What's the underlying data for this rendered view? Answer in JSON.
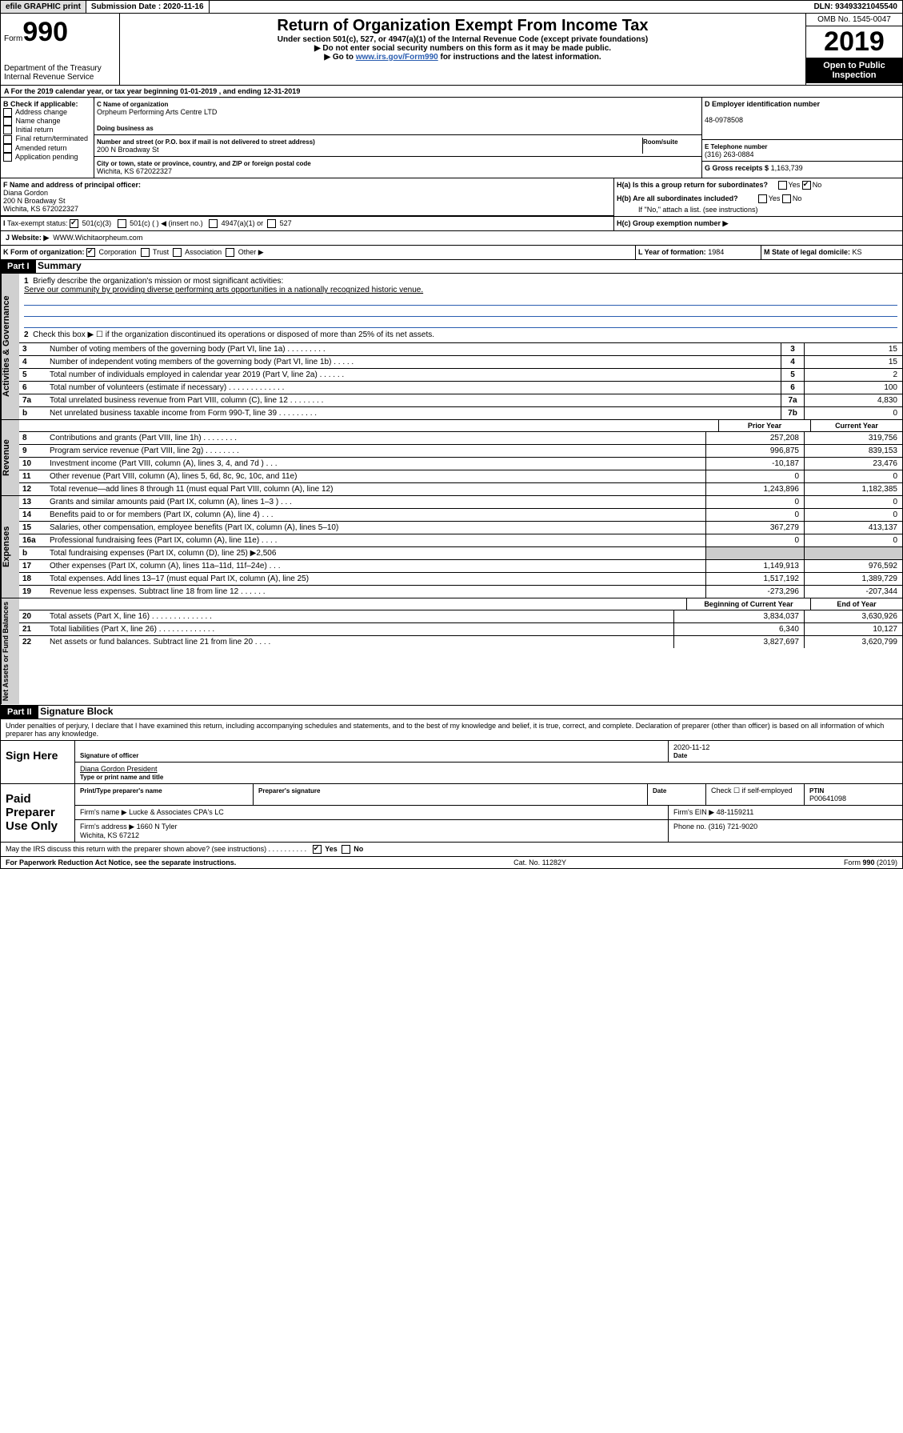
{
  "top": {
    "efile": "efile GRAPHIC print",
    "submission_label": "Submission Date :",
    "submission_date": "2020-11-16",
    "dln_label": "DLN:",
    "dln": "93493321045540"
  },
  "header": {
    "form_word": "Form",
    "form_no": "990",
    "dept": "Department of the Treasury\nInternal Revenue Service",
    "title": "Return of Organization Exempt From Income Tax",
    "subtitle": "Under section 501(c), 527, or 4947(a)(1) of the Internal Revenue Code (except private foundations)",
    "note1": "▶ Do not enter social security numbers on this form as it may be made public.",
    "note2_pre": "▶ Go to ",
    "note2_link": "www.irs.gov/Form990",
    "note2_post": " for instructions and the latest information.",
    "omb": "OMB No. 1545-0047",
    "year": "2019",
    "open": "Open to Public Inspection"
  },
  "section_a": "A  For the 2019 calendar year, or tax year beginning 01-01-2019    , and ending 12-31-2019",
  "box_b": {
    "label": "B Check if applicable:",
    "items": [
      "Address change",
      "Name change",
      "Initial return",
      "Final return/terminated",
      "Amended return",
      "Application pending"
    ]
  },
  "box_c": {
    "name_label": "C Name of organization",
    "name": "Orpheum Performing Arts Centre LTD",
    "dba_label": "Doing business as",
    "addr_label": "Number and street (or P.O. box if mail is not delivered to street address)",
    "room_label": "Room/suite",
    "addr": "200 N Broadway St",
    "city_label": "City or town, state or province, country, and ZIP or foreign postal code",
    "city": "Wichita, KS  672022327"
  },
  "box_d": {
    "label": "D Employer identification number",
    "val": "48-0978508"
  },
  "box_e": {
    "label": "E Telephone number",
    "val": "(316) 263-0884"
  },
  "box_g": {
    "label": "G Gross receipts $",
    "val": "1,163,739"
  },
  "box_f": {
    "label": "F  Name and address of principal officer:",
    "name": "Diana Gordon",
    "addr": "200 N Broadway St\nWichita, KS  672022327"
  },
  "box_h": {
    "a": "H(a)  Is this a group return for subordinates?",
    "b": "H(b)  Are all subordinates included?",
    "note": "If \"No,\" attach a list. (see instructions)",
    "c": "H(c)  Group exemption number ▶",
    "yes": "Yes",
    "no": "No"
  },
  "box_i": {
    "label": "Tax-exempt status:",
    "o1": "501(c)(3)",
    "o2": "501(c) (   ) ◀ (insert no.)",
    "o3": "4947(a)(1) or",
    "o4": "527"
  },
  "box_j": {
    "label": "J   Website: ▶",
    "val": "WWW.Wichitaorpheum.com"
  },
  "box_k": {
    "label": "K Form of organization:",
    "o1": "Corporation",
    "o2": "Trust",
    "o3": "Association",
    "o4": "Other ▶"
  },
  "box_l": {
    "label": "L Year of formation:",
    "val": "1984"
  },
  "box_m": {
    "label": "M State of legal domicile:",
    "val": "KS"
  },
  "part1": {
    "label": "Part I",
    "title": "Summary"
  },
  "summary": {
    "l1_label": "Briefly describe the organization's mission or most significant activities:",
    "l1": "Serve our community by providing diverse performing arts opportunities in a nationally recognized historic venue.",
    "l2": "Check this box ▶ ☐  if the organization discontinued its operations or disposed of more than 25% of its net assets.",
    "l3": "Number of voting members of the governing body (Part VI, line 1a)  .   .   .   .   .   .   .   .   .",
    "l3n": "3",
    "l3v": "15",
    "l4": "Number of independent voting members of the governing body (Part VI, line 1b)   .   .   .   .   .",
    "l4n": "4",
    "l4v": "15",
    "l5": "Total number of individuals employed in calendar year 2019 (Part V, line 2a)  .   .   .   .   .   .",
    "l5n": "5",
    "l5v": "2",
    "l6": "Total number of volunteers (estimate if necessary)   .   .   .   .   .   .   .   .   .   .   .   .   .",
    "l6n": "6",
    "l6v": "100",
    "l7a": "Total unrelated business revenue from Part VIII, column (C), line 12   .   .   .   .   .   .   .   .",
    "l7an": "7a",
    "l7av": "4,830",
    "l7b": "Net unrelated business taxable income from Form 990-T, line 39   .   .   .   .   .   .   .   .   .",
    "l7bn": "7b",
    "l7bv": "0"
  },
  "rev_head": {
    "prior": "Prior Year",
    "curr": "Current Year"
  },
  "revenue": [
    {
      "n": "8",
      "t": "Contributions and grants (Part VIII, line 1h)   .   .   .   .   .   .   .   .",
      "p": "257,208",
      "c": "319,756"
    },
    {
      "n": "9",
      "t": "Program service revenue (Part VIII, line 2g)   .   .   .   .   .   .   .   .",
      "p": "996,875",
      "c": "839,153"
    },
    {
      "n": "10",
      "t": "Investment income (Part VIII, column (A), lines 3, 4, and 7d )   .   .   .",
      "p": "-10,187",
      "c": "23,476"
    },
    {
      "n": "11",
      "t": "Other revenue (Part VIII, column (A), lines 5, 6d, 8c, 9c, 10c, and 11e)",
      "p": "0",
      "c": "0"
    },
    {
      "n": "12",
      "t": "Total revenue—add lines 8 through 11 (must equal Part VIII, column (A), line 12)",
      "p": "1,243,896",
      "c": "1,182,385"
    }
  ],
  "expenses": [
    {
      "n": "13",
      "t": "Grants and similar amounts paid (Part IX, column (A), lines 1–3 )   .   .   .",
      "p": "0",
      "c": "0"
    },
    {
      "n": "14",
      "t": "Benefits paid to or for members (Part IX, column (A), line 4)   .   .   .",
      "p": "0",
      "c": "0"
    },
    {
      "n": "15",
      "t": "Salaries, other compensation, employee benefits (Part IX, column (A), lines 5–10)",
      "p": "367,279",
      "c": "413,137"
    },
    {
      "n": "16a",
      "t": "Professional fundraising fees (Part IX, column (A), line 11e)   .   .   .   .",
      "p": "0",
      "c": "0"
    },
    {
      "n": "b",
      "t": "Total fundraising expenses (Part IX, column (D), line 25) ▶2,506",
      "p": "",
      "c": ""
    },
    {
      "n": "17",
      "t": "Other expenses (Part IX, column (A), lines 11a–11d, 11f–24e)   .   .   .",
      "p": "1,149,913",
      "c": "976,592"
    },
    {
      "n": "18",
      "t": "Total expenses. Add lines 13–17 (must equal Part IX, column (A), line 25)",
      "p": "1,517,192",
      "c": "1,389,729"
    },
    {
      "n": "19",
      "t": "Revenue less expenses. Subtract line 18 from line 12   .   .   .   .   .   .",
      "p": "-273,296",
      "c": "-207,344"
    }
  ],
  "net_head": {
    "prior": "Beginning of Current Year",
    "curr": "End of Year"
  },
  "netassets": [
    {
      "n": "20",
      "t": "Total assets (Part X, line 16)   .   .   .   .   .   .   .   .   .   .   .   .   .   .",
      "p": "3,834,037",
      "c": "3,630,926"
    },
    {
      "n": "21",
      "t": "Total liabilities (Part X, line 26)   .   .   .   .   .   .   .   .   .   .   .   .   .",
      "p": "6,340",
      "c": "10,127"
    },
    {
      "n": "22",
      "t": "Net assets or fund balances. Subtract line 21 from line 20   .   .   .   .",
      "p": "3,827,697",
      "c": "3,620,799"
    }
  ],
  "tabs": {
    "gov": "Activities & Governance",
    "rev": "Revenue",
    "exp": "Expenses",
    "net": "Net Assets or Fund Balances"
  },
  "part2": {
    "label": "Part II",
    "title": "Signature Block"
  },
  "perjury": "Under penalties of perjury, I declare that I have examined this return, including accompanying schedules and statements, and to the best of my knowledge and belief, it is true, correct, and complete. Declaration of preparer (other than officer) is based on all information of which preparer has any knowledge.",
  "sign": {
    "here": "Sign Here",
    "sig_officer": "Signature of officer",
    "date": "2020-11-12",
    "date_label": "Date",
    "name": "Diana Gordon  President",
    "name_label": "Type or print name and title"
  },
  "paid": {
    "label": "Paid Preparer Use Only",
    "h1": "Print/Type preparer's name",
    "h2": "Preparer's signature",
    "h3": "Date",
    "check": "Check ☐ if self-employed",
    "ptin_l": "PTIN",
    "ptin": "P00641098",
    "firm_l": "Firm's name    ▶",
    "firm": "Lucke & Associates CPA's LC",
    "ein_l": "Firm's EIN ▶",
    "ein": "48-1159211",
    "addr_l": "Firm's address ▶",
    "addr": "1660 N Tyler\nWichita, KS  67212",
    "phone_l": "Phone no.",
    "phone": "(316) 721-9020"
  },
  "discuss": {
    "q": "May the IRS discuss this return with the preparer shown above? (see instructions)   .   .   .   .   .   .   .   .   .   .",
    "yes": "Yes",
    "no": "No"
  },
  "footer": {
    "l": "For Paperwork Reduction Act Notice, see the separate instructions.",
    "c": "Cat. No. 11282Y",
    "r": "Form 990 (2019)"
  }
}
